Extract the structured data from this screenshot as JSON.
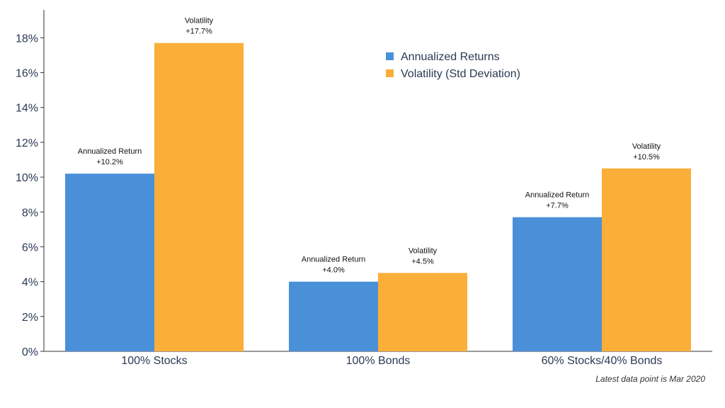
{
  "chart_data": {
    "type": "bar",
    "categories": [
      "100% Stocks",
      "100% Bonds",
      "60% Stocks/40% Bonds"
    ],
    "series": [
      {
        "name": "Annualized Returns",
        "color": "#4a90d9",
        "values": [
          10.2,
          4.0,
          7.7
        ],
        "label_title": "Annualized Return",
        "labels": [
          "+10.2%",
          "+4.0%",
          "+7.7%"
        ]
      },
      {
        "name": "Volatility (Std Deviation)",
        "color": "#fbae38",
        "values": [
          17.7,
          4.5,
          10.5
        ],
        "label_title": "Volatility",
        "labels": [
          "+17.7%",
          "+4.5%",
          "+10.5%"
        ]
      }
    ],
    "ylim": [
      0,
      19.6
    ],
    "yticks": [
      0,
      2,
      4,
      6,
      8,
      10,
      12,
      14,
      16,
      18
    ],
    "ytick_labels": [
      "0%",
      "2%",
      "4%",
      "6%",
      "8%",
      "10%",
      "12%",
      "14%",
      "16%",
      "18%"
    ],
    "grid": false,
    "legend_position": "top-center",
    "xlabel": "",
    "ylabel": ""
  },
  "footnote": "Latest data point is Mar 2020"
}
